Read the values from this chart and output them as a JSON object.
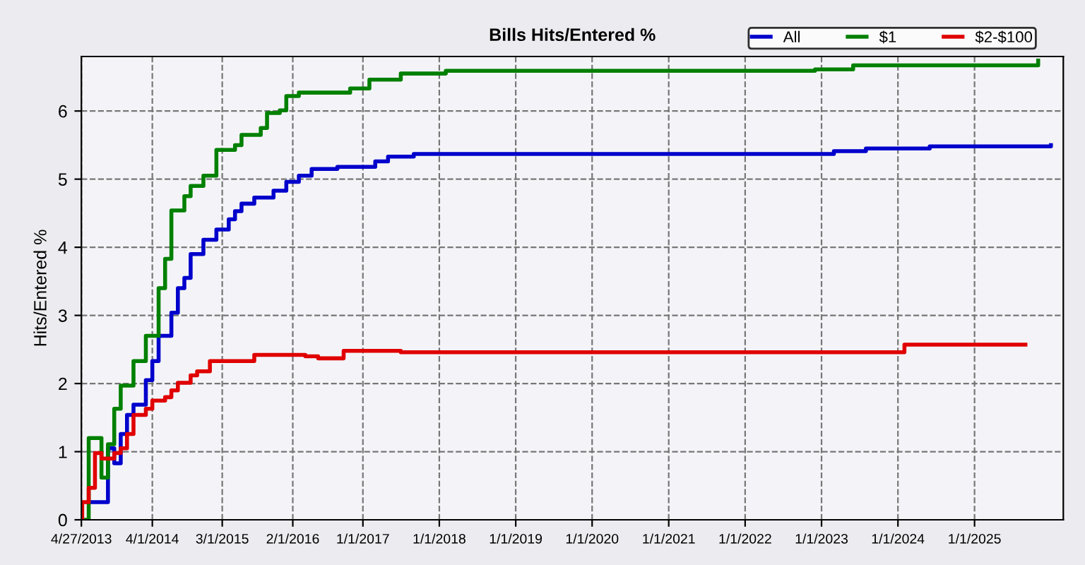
{
  "chart_data": {
    "type": "step",
    "title": "Bills Hits/Entered %",
    "ylabel": "Hits/Entered %",
    "xlim": [
      "2013-04-27",
      "2026-03"
    ],
    "ylim": [
      0,
      6.8
    ],
    "yticks": [
      0,
      1,
      2,
      3,
      4,
      5,
      6
    ],
    "xticks": [
      {
        "value": "2013-04-27",
        "label": "4/27/2013"
      },
      {
        "value": "2014-04-01",
        "label": "4/1/2014"
      },
      {
        "value": "2015-03-01",
        "label": "3/1/2015"
      },
      {
        "value": "2016-02-01",
        "label": "2/1/2016"
      },
      {
        "value": "2017-01-01",
        "label": "1/1/2017"
      },
      {
        "value": "2018-01-01",
        "label": "1/1/2018"
      },
      {
        "value": "2019-01-01",
        "label": "1/1/2019"
      },
      {
        "value": "2020-01-01",
        "label": "1/1/2020"
      },
      {
        "value": "2021-01-01",
        "label": "1/1/2021"
      },
      {
        "value": "2022-01-01",
        "label": "1/1/2022"
      },
      {
        "value": "2023-01-01",
        "label": "1/1/2023"
      },
      {
        "value": "2024-01-01",
        "label": "1/1/2024"
      },
      {
        "value": "2025-01-01",
        "label": "1/1/2025"
      }
    ],
    "grid": true,
    "legend": "top right",
    "line_style": "solid",
    "series": [
      {
        "name": "All",
        "color": "#0000cc",
        "x": [
          "2013-06",
          "2013-08",
          "2013-09",
          "2013-10",
          "2013-11",
          "2013-12",
          "2014-01",
          "2014-03",
          "2014-04",
          "2014-05",
          "2014-07",
          "2014-08",
          "2014-09",
          "2014-10",
          "2014-12",
          "2015-02",
          "2015-04",
          "2015-05",
          "2015-06",
          "2015-08",
          "2015-11",
          "2016-01",
          "2016-03",
          "2016-05",
          "2016-09",
          "2017-03",
          "2017-05",
          "2017-09",
          "2023-03",
          "2023-08",
          "2024-06",
          "2026-01"
        ],
        "values": [
          0.26,
          0.26,
          1.05,
          0.83,
          1.26,
          1.54,
          1.69,
          2.05,
          2.33,
          2.7,
          3.04,
          3.4,
          3.55,
          3.9,
          4.11,
          4.26,
          4.41,
          4.53,
          4.64,
          4.73,
          4.83,
          4.96,
          5.05,
          5.15,
          5.18,
          5.26,
          5.33,
          5.37,
          5.41,
          5.45,
          5.48,
          5.5
        ]
      },
      {
        "name": "$1",
        "color": "#008000",
        "x": [
          "2013-05",
          "2013-06",
          "2013-08",
          "2013-09",
          "2013-10",
          "2013-11",
          "2014-01",
          "2014-03",
          "2014-05",
          "2014-06",
          "2014-07",
          "2014-09",
          "2014-10",
          "2014-12",
          "2015-02",
          "2015-05",
          "2015-06",
          "2015-09",
          "2015-10",
          "2015-12",
          "2016-01",
          "2016-03",
          "2016-11",
          "2017-02",
          "2017-07",
          "2018-02",
          "2022-12",
          "2023-06",
          "2025-11"
        ],
        "values": [
          0.0,
          1.2,
          0.62,
          1.11,
          1.63,
          1.97,
          2.33,
          2.7,
          3.4,
          3.83,
          4.54,
          4.75,
          4.9,
          5.05,
          5.43,
          5.5,
          5.65,
          5.75,
          5.97,
          6.01,
          6.22,
          6.27,
          6.33,
          6.46,
          6.55,
          6.59,
          6.61,
          6.67,
          6.74
        ]
      },
      {
        "name": "$2-$100",
        "color": "#e00000",
        "x": [
          "2013-04-27",
          "2013-05",
          "2013-06",
          "2013-07",
          "2013-08",
          "2013-10",
          "2013-11",
          "2013-12",
          "2014-01",
          "2014-03",
          "2014-04",
          "2014-06",
          "2014-07",
          "2014-08",
          "2014-10",
          "2014-11",
          "2015-01",
          "2015-08",
          "2016-04",
          "2016-06",
          "2016-10",
          "2017-07",
          "2024-02",
          "2025-09"
        ],
        "values": [
          0.0,
          0.26,
          0.47,
          0.98,
          0.9,
          0.98,
          1.05,
          1.26,
          1.54,
          1.63,
          1.75,
          1.8,
          1.9,
          2.01,
          2.12,
          2.18,
          2.33,
          2.42,
          2.4,
          2.37,
          2.48,
          2.46,
          2.57,
          2.57
        ]
      }
    ]
  }
}
